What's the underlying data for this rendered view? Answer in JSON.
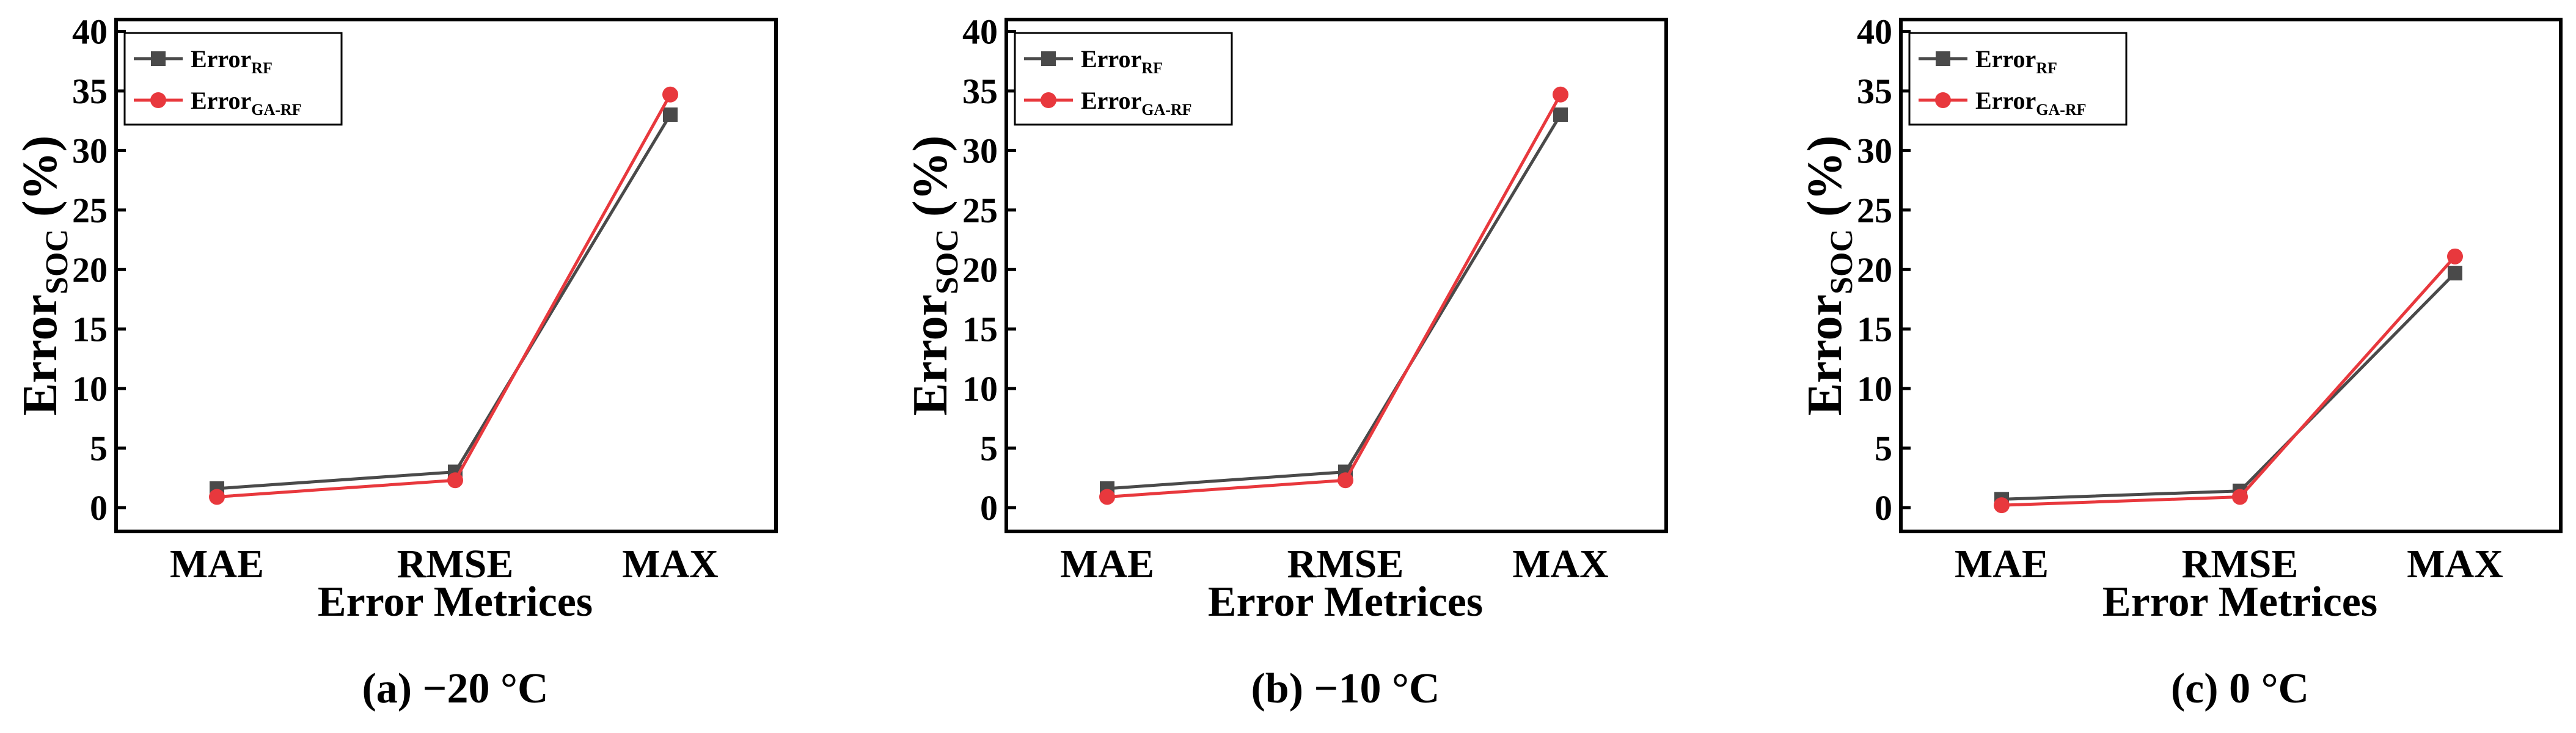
{
  "chart_data": [
    {
      "type": "line",
      "caption": "(a) −20 °C",
      "categories": [
        "MAE",
        "RMSE",
        "MAX"
      ],
      "xlabel": "Error Metrices",
      "ylabel": {
        "main": "Error",
        "sub": "SOC",
        "suffix": " (%)"
      },
      "ylim": [
        -2,
        41
      ],
      "yticks": [
        "0",
        "5",
        "10",
        "15",
        "20",
        "25",
        "30",
        "35",
        "40"
      ],
      "legend_position": "top-left",
      "series": [
        {
          "name": "Error",
          "sub": "RF",
          "color": "#4a4a4a",
          "marker": "square",
          "values": [
            1.6,
            3.0,
            33.0
          ]
        },
        {
          "name": "Error",
          "sub": "GA-RF",
          "color": "#e8383d",
          "marker": "circle",
          "values": [
            0.9,
            2.3,
            34.7
          ]
        }
      ]
    },
    {
      "type": "line",
      "caption": "(b) −10 °C",
      "categories": [
        "MAE",
        "RMSE",
        "MAX"
      ],
      "xlabel": "Error Metrices",
      "ylabel": {
        "main": "Error",
        "sub": "SOC",
        "suffix": " (%)"
      },
      "ylim": [
        -2,
        41
      ],
      "yticks": [
        "0",
        "5",
        "10",
        "15",
        "20",
        "25",
        "30",
        "35",
        "40"
      ],
      "legend_position": "top-left",
      "series": [
        {
          "name": "Error",
          "sub": "RF",
          "color": "#4a4a4a",
          "marker": "square",
          "values": [
            1.6,
            3.0,
            33.0
          ]
        },
        {
          "name": "Error",
          "sub": "GA-RF",
          "color": "#e8383d",
          "marker": "circle",
          "values": [
            0.9,
            2.3,
            34.7
          ]
        }
      ]
    },
    {
      "type": "line",
      "caption": "(c) 0 °C",
      "categories": [
        "MAE",
        "RMSE",
        "MAX"
      ],
      "xlabel": "Error Metrices",
      "ylabel": {
        "main": "Error",
        "sub": "SOC",
        "suffix": " (%)"
      },
      "ylim": [
        -2,
        41
      ],
      "yticks": [
        "0",
        "5",
        "10",
        "15",
        "20",
        "25",
        "30",
        "35",
        "40"
      ],
      "legend_position": "top-left",
      "series": [
        {
          "name": "Error",
          "sub": "RF",
          "color": "#4a4a4a",
          "marker": "square",
          "values": [
            0.7,
            1.4,
            19.7
          ]
        },
        {
          "name": "Error",
          "sub": "GA-RF",
          "color": "#e8383d",
          "marker": "circle",
          "values": [
            0.2,
            0.9,
            21.1
          ]
        }
      ]
    }
  ]
}
